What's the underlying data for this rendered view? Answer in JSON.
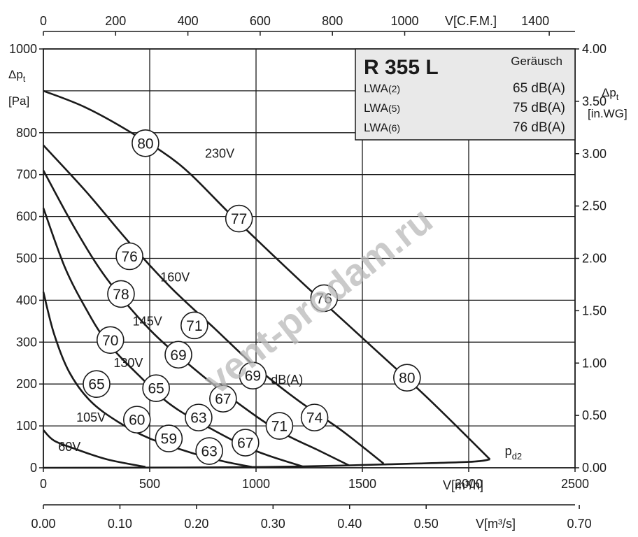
{
  "chart_data": {
    "type": "line",
    "title": "R 355 L",
    "x": {
      "label": "V[m³/h]",
      "range": [
        0,
        2500
      ],
      "ticks": [
        "0",
        "500",
        "1000",
        "1500",
        "2000",
        "2500"
      ]
    },
    "x2_cfm": {
      "label": "V[C.F.M.]",
      "ticks": [
        "0",
        "200",
        "400",
        "600",
        "800",
        "1000",
        "1400"
      ]
    },
    "x3_m3s": {
      "label": "V[m³/s]",
      "ticks": [
        "0.00",
        "0.10",
        "0.20",
        "0.30",
        "0.40",
        "0.50",
        "0.70"
      ]
    },
    "y": {
      "label_main": "Δp",
      "label_sub": "t",
      "unit": "[Pa]",
      "range": [
        0,
        1000
      ],
      "ticks": [
        "0",
        "100",
        "200",
        "300",
        "400",
        "500",
        "600",
        "700",
        "800",
        "1000"
      ]
    },
    "y2_inwg": {
      "label_main": "Δp",
      "label_sub": "t",
      "unit": "[in.WG]",
      "ticks": [
        "0.00",
        "0.50",
        "1.00",
        "1.50",
        "2.00",
        "2.50",
        "3.00",
        "3.50",
        "4.00"
      ]
    },
    "grid": true,
    "series": [
      {
        "name": "230V",
        "points": [
          [
            0,
            900
          ],
          [
            200,
            860
          ],
          [
            430,
            795
          ],
          [
            650,
            720
          ],
          [
            900,
            595
          ],
          [
            1200,
            450
          ],
          [
            1500,
            310
          ],
          [
            1800,
            170
          ],
          [
            2100,
            20
          ]
        ]
      },
      {
        "name": "160V",
        "points": [
          [
            0,
            770
          ],
          [
            200,
            660
          ],
          [
            400,
            540
          ],
          [
            600,
            430
          ],
          [
            800,
            335
          ],
          [
            1000,
            240
          ],
          [
            1200,
            160
          ],
          [
            1400,
            90
          ],
          [
            1600,
            10
          ]
        ]
      },
      {
        "name": "145V",
        "points": [
          [
            0,
            710
          ],
          [
            150,
            570
          ],
          [
            300,
            450
          ],
          [
            500,
            330
          ],
          [
            700,
            240
          ],
          [
            900,
            160
          ],
          [
            1100,
            90
          ],
          [
            1300,
            40
          ],
          [
            1440,
            5
          ]
        ]
      },
      {
        "name": "130V",
        "points": [
          [
            0,
            620
          ],
          [
            100,
            480
          ],
          [
            200,
            380
          ],
          [
            300,
            300
          ],
          [
            450,
            220
          ],
          [
            600,
            150
          ],
          [
            800,
            90
          ],
          [
            1000,
            40
          ],
          [
            1220,
            3
          ]
        ]
      },
      {
        "name": "105V",
        "points": [
          [
            0,
            420
          ],
          [
            50,
            320
          ],
          [
            120,
            230
          ],
          [
            220,
            160
          ],
          [
            350,
            110
          ],
          [
            500,
            70
          ],
          [
            700,
            35
          ],
          [
            850,
            15
          ],
          [
            980,
            2
          ]
        ]
      },
      {
        "name": "60V",
        "points": [
          [
            0,
            90
          ],
          [
            50,
            65
          ],
          [
            150,
            45
          ],
          [
            300,
            20
          ],
          [
            480,
            2
          ]
        ]
      },
      {
        "name": "p_d2",
        "points": [
          [
            0,
            0
          ],
          [
            400,
            0.3
          ],
          [
            800,
            1
          ],
          [
            1200,
            3
          ],
          [
            1600,
            8
          ],
          [
            2000,
            14
          ],
          [
            2100,
            20
          ]
        ]
      }
    ],
    "voltage_labels": [
      {
        "text": "230V",
        "x": 760,
        "y": 740
      },
      {
        "text": "160V",
        "x": 550,
        "y": 445
      },
      {
        "text": "145V",
        "x": 420,
        "y": 340
      },
      {
        "text": "130V",
        "x": 330,
        "y": 240
      },
      {
        "text": "105V",
        "x": 155,
        "y": 110
      },
      {
        "text": "60V",
        "x": 70,
        "y": 40
      }
    ],
    "pd2_label": {
      "text_main": "p",
      "text_sub": "d2",
      "x": 2170,
      "y": 30
    },
    "dba_label": {
      "text": "dB(A)",
      "x": 1070,
      "y": 210
    },
    "sound_levels": [
      {
        "value": "80",
        "x": 480,
        "y": 775
      },
      {
        "value": "77",
        "x": 920,
        "y": 595
      },
      {
        "value": "76",
        "x": 1320,
        "y": 405
      },
      {
        "value": "80",
        "x": 1710,
        "y": 215
      },
      {
        "value": "76",
        "x": 405,
        "y": 505
      },
      {
        "value": "71",
        "x": 710,
        "y": 340
      },
      {
        "value": "69",
        "x": 985,
        "y": 220
      },
      {
        "value": "74",
        "x": 1275,
        "y": 120
      },
      {
        "value": "78",
        "x": 365,
        "y": 415
      },
      {
        "value": "69",
        "x": 635,
        "y": 270
      },
      {
        "value": "67",
        "x": 845,
        "y": 165
      },
      {
        "value": "71",
        "x": 1110,
        "y": 100
      },
      {
        "value": "70",
        "x": 315,
        "y": 305
      },
      {
        "value": "65",
        "x": 530,
        "y": 190
      },
      {
        "value": "63",
        "x": 730,
        "y": 120
      },
      {
        "value": "67",
        "x": 950,
        "y": 60
      },
      {
        "value": "65",
        "x": 250,
        "y": 200
      },
      {
        "value": "60",
        "x": 440,
        "y": 115
      },
      {
        "value": "59",
        "x": 590,
        "y": 70
      },
      {
        "value": "63",
        "x": 780,
        "y": 40
      }
    ],
    "legend": {
      "title": "R 355 L",
      "header": "Geräusch",
      "rows": [
        {
          "label_main": "LWA",
          "label_sub": "(2)",
          "value": "65 dB(A)"
        },
        {
          "label_main": "LWA",
          "label_sub": "(5)",
          "value": "75 dB(A)"
        },
        {
          "label_main": "LWA",
          "label_sub": "(6)",
          "value": "76 dB(A)"
        }
      ],
      "position": "top-right"
    },
    "watermark": "vent-prodam.ru"
  }
}
